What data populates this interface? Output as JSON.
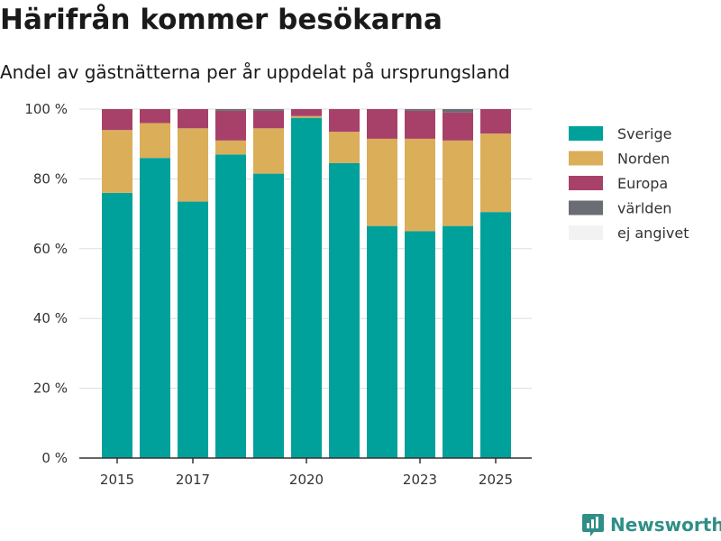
{
  "title": "Härifrån kommer besökarna",
  "subtitle": "Andel av gästnätterna per år uppdelat på ursprungsland",
  "logo_text": "Newsworthy",
  "chart_data": {
    "type": "bar",
    "stacked": true,
    "categories": [
      2015,
      2016,
      2017,
      2018,
      2019,
      2020,
      2021,
      2022,
      2023,
      2024,
      2025
    ],
    "x_tick_labels": [
      "2015",
      "2017",
      "2020",
      "2023",
      "2025"
    ],
    "y_tick_labels": [
      "0 %",
      "20 %",
      "40 %",
      "60 %",
      "80 %",
      "100 %"
    ],
    "ylim": [
      0,
      100
    ],
    "y_ticks": [
      0,
      20,
      40,
      60,
      80,
      100
    ],
    "grid": true,
    "legend_position": "right",
    "series": [
      {
        "name": "Sverige",
        "color": "#00a19a",
        "values": [
          76,
          86,
          73.5,
          87,
          81.5,
          97.5,
          84.5,
          66.5,
          65,
          66.5,
          70.5
        ]
      },
      {
        "name": "Norden",
        "color": "#dbae5a",
        "values": [
          18,
          10,
          21,
          4,
          13,
          0.5,
          9,
          25,
          26.5,
          24.5,
          22.5
        ]
      },
      {
        "name": "Europa",
        "color": "#a8416a",
        "values": [
          6,
          4,
          5.5,
          8.5,
          5,
          2,
          6.5,
          8.5,
          8,
          8,
          7
        ]
      },
      {
        "name": "världen",
        "color": "#6b6d75",
        "values": [
          0,
          0,
          0,
          0.5,
          0.5,
          0,
          0,
          0,
          0.5,
          1,
          0
        ]
      },
      {
        "name": "ej angivet",
        "color": "#f2f2f2",
        "values": [
          0,
          0,
          0,
          0,
          0,
          0,
          0,
          0,
          0,
          0,
          0
        ]
      }
    ]
  }
}
